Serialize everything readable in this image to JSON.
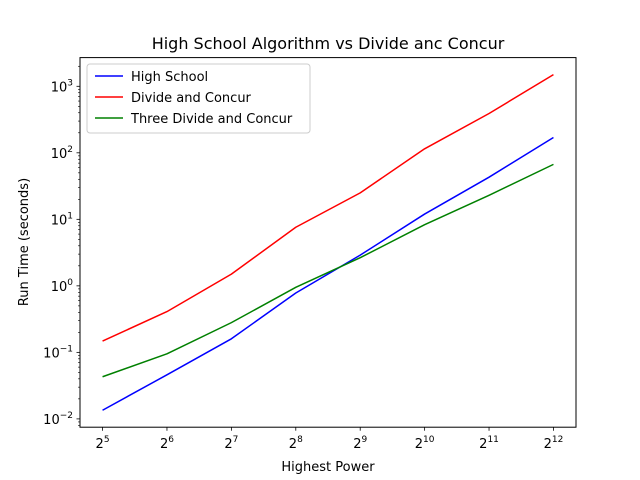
{
  "chart_data": {
    "type": "line",
    "title": "High School Algorithm vs Divide anc Concur",
    "xlabel": "Highest Power",
    "ylabel": "Run Time (seconds)",
    "x": [
      32,
      64,
      128,
      256,
      512,
      1024,
      2048,
      4096
    ],
    "x_scale": "log2",
    "y_scale": "log10",
    "x_ticks": [
      {
        "base": "2",
        "exp": "5"
      },
      {
        "base": "2",
        "exp": "6"
      },
      {
        "base": "2",
        "exp": "7"
      },
      {
        "base": "2",
        "exp": "8"
      },
      {
        "base": "2",
        "exp": "9"
      },
      {
        "base": "2",
        "exp": "10"
      },
      {
        "base": "2",
        "exp": "11"
      },
      {
        "base": "2",
        "exp": "12"
      }
    ],
    "y_ticks": [
      {
        "base": "10",
        "exp": "−2"
      },
      {
        "base": "10",
        "exp": "−1"
      },
      {
        "base": "10",
        "exp": "0"
      },
      {
        "base": "10",
        "exp": "1"
      },
      {
        "base": "10",
        "exp": "2"
      },
      {
        "base": "10",
        "exp": "3"
      }
    ],
    "ylim": [
      0.0075,
      2700
    ],
    "grid": false,
    "legend_position": "upper-left",
    "series": [
      {
        "name": "High School",
        "color": "#0000ff",
        "values": [
          0.0135,
          0.046,
          0.16,
          0.78,
          2.9,
          12,
          43,
          170
        ]
      },
      {
        "name": "Divide and Concur",
        "color": "#ff0000",
        "values": [
          0.148,
          0.41,
          1.5,
          7.6,
          25,
          115,
          390,
          1500
        ]
      },
      {
        "name": "Three Divide and Concur",
        "color": "#008000",
        "values": [
          0.043,
          0.095,
          0.28,
          0.95,
          2.65,
          8.3,
          23,
          67
        ]
      }
    ]
  }
}
